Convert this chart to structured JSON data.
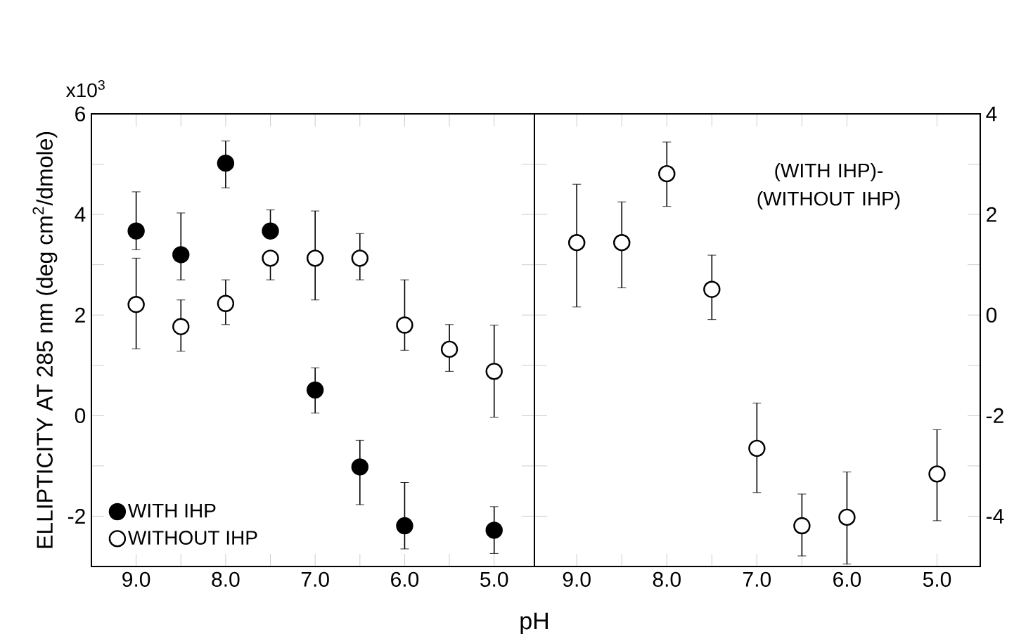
{
  "chart_data": [
    {
      "type": "scatter",
      "ylabel": "ELLIPTICITY AT 285 nm (deg cm$^{2}$/dmole)",
      "xlabel": "pH",
      "annotations": [
        "x10$^{3}$"
      ],
      "x": [
        9.0,
        8.5,
        8.0,
        7.5,
        7.0,
        6.5,
        6.0,
        5.5,
        5.0
      ],
      "series": [
        {
          "name": "WITH IHP",
          "color": "#000000",
          "x": [
            9.0,
            8.5,
            8.0,
            7.5,
            7.0,
            6.5,
            6.0,
            5.0
          ],
          "values": [
            3.67,
            3.2,
            5.02,
            3.67,
            0.51,
            -1.02,
            -2.19,
            -2.28
          ],
          "errors": [
            [
              3.3,
              4.45
            ],
            [
              2.7,
              4.03
            ],
            [
              4.53,
              5.46
            ],
            [
              3.55,
              4.09
            ],
            [
              0.05,
              0.95
            ],
            [
              -1.77,
              -0.49
            ],
            [
              -2.65,
              -1.33
            ],
            [
              -2.74,
              -1.81
            ]
          ]
        },
        {
          "name": "WITHOUT IHP",
          "color": "#ffffff",
          "values": [
            2.21,
            1.77,
            2.23,
            3.13,
            3.13,
            3.13,
            1.8,
            1.32,
            0.88
          ],
          "errors": [
            [
              1.33,
              3.13
            ],
            [
              1.28,
              2.3
            ],
            [
              1.81,
              2.7
            ],
            [
              2.7,
              3.25
            ],
            [
              2.3,
              4.07
            ],
            [
              2.7,
              3.62
            ],
            [
              1.3,
              2.7
            ],
            [
              0.88,
              1.81
            ],
            [
              -0.03,
              1.8
            ]
          ]
        }
      ],
      "xlim": [
        9.5,
        4.55
      ],
      "xticks": [
        {
          "value": 9.0,
          "label": "9.0"
        },
        {
          "value": 8.5,
          "label": null
        },
        {
          "value": 8.0,
          "label": "8.0"
        },
        {
          "value": 7.5,
          "label": null
        },
        {
          "value": 7.0,
          "label": "7.0"
        },
        {
          "value": 6.5,
          "label": null
        },
        {
          "value": 6.0,
          "label": "6.0"
        },
        {
          "value": 5.5,
          "label": null
        },
        {
          "value": 5.0,
          "label": "5.0"
        }
      ],
      "ylim": [
        -3,
        6
      ],
      "yticks": [
        6,
        {
          "value": 5,
          "label": null
        },
        4,
        {
          "value": 3,
          "label": null
        },
        2,
        {
          "value": 1,
          "label": null
        },
        0,
        {
          "value": -1,
          "label": null
        },
        -2
      ],
      "marker": "circle",
      "legend": "bottom left"
    },
    {
      "type": "scatter",
      "annotations": [
        "(WITH IHP)- (WITHOUT IHP)"
      ],
      "x": [
        9.0,
        8.5,
        8.0,
        7.5,
        7.0,
        6.5,
        6.0,
        5.0
      ],
      "series": [
        {
          "color": "#ffffff",
          "axis": "y2",
          "values": [
            1.44,
            1.44,
            2.81,
            0.51,
            -2.65,
            -4.19,
            -4.02,
            -3.16
          ],
          "errors": [
            [
              0.16,
              2.6
            ],
            [
              0.54,
              2.25
            ],
            [
              2.16,
              3.44
            ],
            [
              -0.09,
              1.19
            ],
            [
              -3.53,
              -1.75
            ],
            [
              -4.79,
              -3.56
            ],
            [
              -4.95,
              -3.12
            ],
            [
              -4.09,
              -2.28
            ]
          ]
        }
      ],
      "xlim": [
        9.47,
        4.52
      ],
      "xticks": [
        {
          "value": 9.0,
          "label": "9.0"
        },
        {
          "value": 8.5,
          "label": null
        },
        {
          "value": 8.0,
          "label": "8.0"
        },
        {
          "value": 7.5,
          "label": null
        },
        {
          "value": 7.0,
          "label": "7.0"
        },
        {
          "value": 6.5,
          "label": null
        },
        {
          "value": 6.0,
          "label": "6.0"
        },
        {
          "value": 5.0,
          "label": "5.0"
        }
      ],
      "y2lim": [
        -5,
        4
      ],
      "y2ticks": [
        4,
        {
          "value": 3,
          "label": null
        },
        2,
        {
          "value": 1,
          "label": null
        },
        0,
        {
          "value": -1,
          "label": null
        },
        -2,
        {
          "value": -3,
          "label": null
        },
        -4
      ],
      "marker": "circle"
    }
  ]
}
